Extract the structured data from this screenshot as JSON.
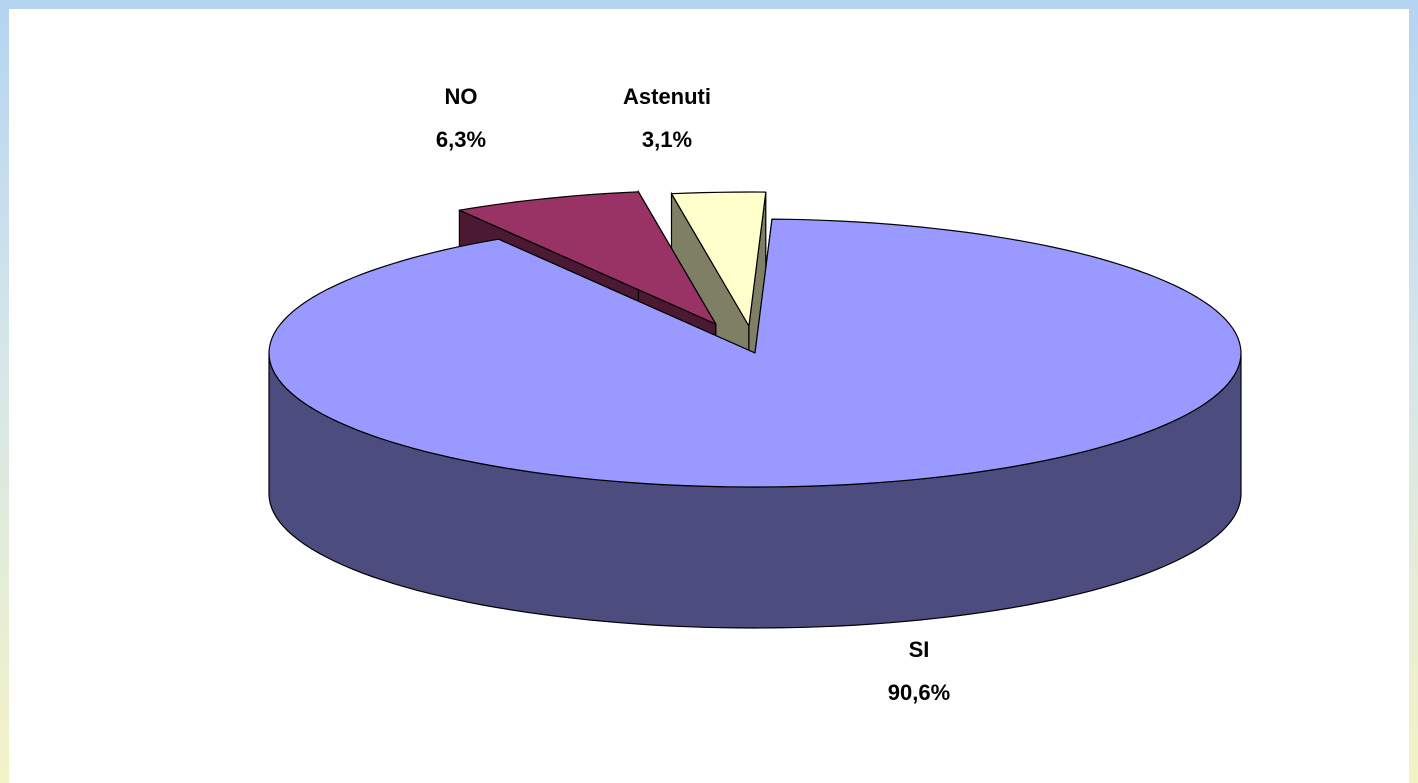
{
  "chart_data": {
    "type": "pie",
    "style": "3d-exploded",
    "slices": [
      {
        "label": "SI",
        "value": 90.6,
        "value_label": "90,6%",
        "top_color": "#9999ff",
        "side_color": "#4c4c7f"
      },
      {
        "label": "NO",
        "value": 6.3,
        "value_label": "6,3%",
        "top_color": "#993366",
        "side_color": "#4c1932"
      },
      {
        "label": "Astenuti",
        "value": 3.1,
        "value_label": "3,1%",
        "top_color": "#ffffcc",
        "side_color": "#7f7f66"
      }
    ],
    "legend": "none",
    "title": ""
  },
  "colors": {
    "plot_background": "#ffffff",
    "frame_gradient_top": "#b4d4f2",
    "frame_gradient_bottom": "#f3f3c6",
    "outline": "#000000"
  }
}
